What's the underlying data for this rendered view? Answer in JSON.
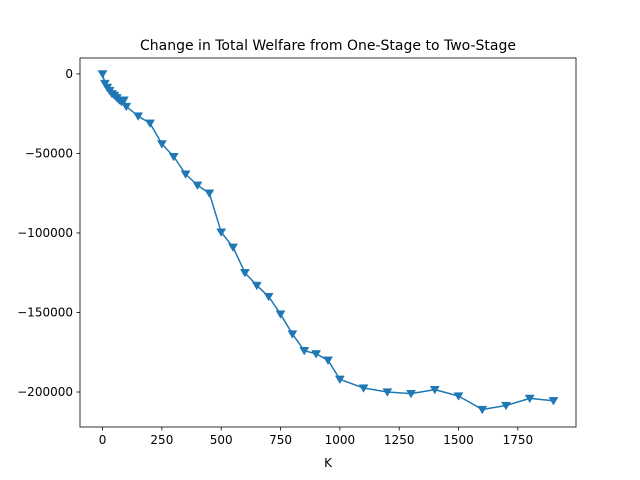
{
  "chart_data": {
    "type": "line",
    "title": "Change in Total Welfare from One-Stage to Two-Stage",
    "xlabel": "K",
    "ylabel": "",
    "xlim": [
      -95,
      1995
    ],
    "ylim": [
      -222000,
      10000
    ],
    "xticks": [
      0,
      250,
      500,
      750,
      1000,
      1250,
      1500,
      1750
    ],
    "yticks": [
      0,
      -50000,
      -100000,
      -150000,
      -200000
    ],
    "xtick_labels": [
      "0",
      "250",
      "500",
      "750",
      "1000",
      "1250",
      "1500",
      "1750"
    ],
    "ytick_labels": [
      "0",
      "−50000",
      "−100000",
      "−150000",
      "−200000"
    ],
    "grid": false,
    "legend": null,
    "marker": "triangle-down",
    "color": "#1f77b4",
    "series": [
      {
        "x": [
          0,
          10,
          20,
          30,
          40,
          50,
          60,
          70,
          80,
          90,
          100,
          150,
          200,
          250,
          300,
          350,
          400,
          450,
          500,
          550,
          600,
          650,
          700,
          750,
          800,
          850,
          900,
          950,
          1000,
          1100,
          1200,
          1300,
          1400,
          1500,
          1600,
          1700,
          1800,
          1900
        ],
        "y": [
          0,
          -6000,
          -8500,
          -10500,
          -12500,
          -13500,
          -15000,
          -16500,
          -17500,
          -16500,
          -20500,
          -26500,
          -31000,
          -44000,
          -52000,
          -63000,
          -70000,
          -75000,
          -99500,
          -109000,
          -125000,
          -133000,
          -140000,
          -151000,
          -163500,
          -174000,
          -176000,
          -180000,
          -192000,
          -197500,
          -200000,
          -201000,
          -198500,
          -202500,
          -211000,
          -208500,
          -204000,
          -205500
        ]
      }
    ]
  }
}
